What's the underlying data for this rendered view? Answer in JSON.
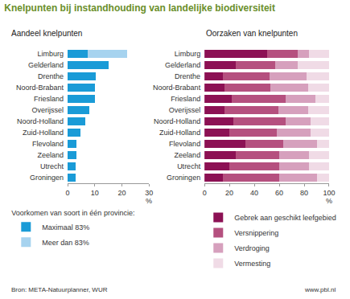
{
  "title": "Knelpunten bij instandhouding van landelijke biodiversiteit",
  "source": "Bron: META-Natuurplanner, WUR",
  "credit": "www.pbl.nl",
  "chart_data": [
    {
      "type": "bar",
      "subtitle": "Aandeel knelpunten",
      "orientation": "horizontal",
      "stacked": true,
      "grid": false,
      "x_label": "%",
      "legend_title": "Voorkomen van soort in één provincie:",
      "categories": [
        "Limburg",
        "Gelderland",
        "Drenthe",
        "Noord-Brabant",
        "Friesland",
        "Overijssel",
        "Noord-Holland",
        "Zuid-Holland",
        "Flevoland",
        "Zeeland",
        "Utrecht",
        "Groningen"
      ],
      "series": [
        {
          "name": "Maximaal 83%",
          "color": "#1a9bd7",
          "values": [
            7.3,
            15.2,
            10.5,
            10.2,
            10.0,
            8.0,
            6.5,
            4.8,
            3.3,
            3.2,
            3.0,
            3.0
          ]
        },
        {
          "name": "Meer dan 83%",
          "color": "#a6d3ef",
          "values": [
            14.5,
            0,
            0,
            0,
            0,
            0,
            0,
            0,
            0,
            0,
            0,
            0
          ]
        }
      ],
      "xlim": [
        0,
        30
      ],
      "xticks": [
        0,
        10,
        20,
        30
      ]
    },
    {
      "type": "bar",
      "subtitle": "Oorzaken van knelpunten",
      "orientation": "horizontal",
      "stacked": true,
      "grid": false,
      "x_label": "%",
      "categories": [
        "Limburg",
        "Gelderland",
        "Drenthe",
        "Noord-Brabant",
        "Friesland",
        "Overijssel",
        "Noord-Holland",
        "Zuid-Holland",
        "Flevoland",
        "Zeeland",
        "Utrecht",
        "Groningen"
      ],
      "series": [
        {
          "name": "Gebrek aan geschikt leefgebied",
          "color": "#8c1154",
          "values": [
            50,
            25,
            15,
            16,
            22,
            16,
            23,
            20,
            33,
            25,
            20,
            15
          ]
        },
        {
          "name": "Versnippering",
          "color": "#b5507f",
          "values": [
            25,
            32,
            37,
            37,
            43,
            43,
            42,
            38,
            30,
            35,
            40,
            45
          ]
        },
        {
          "name": "Verdroging",
          "color": "#d6a0bd",
          "values": [
            9,
            18,
            30,
            30,
            24,
            24,
            20,
            27,
            27,
            24,
            24,
            30
          ]
        },
        {
          "name": "Vermesting",
          "color": "#f0dbe6",
          "values": [
            16,
            25,
            18,
            17,
            11,
            17,
            15,
            15,
            10,
            16,
            16,
            10
          ]
        }
      ],
      "xlim": [
        0,
        100
      ],
      "xticks": [
        0,
        20,
        40,
        60,
        80,
        100
      ]
    }
  ]
}
